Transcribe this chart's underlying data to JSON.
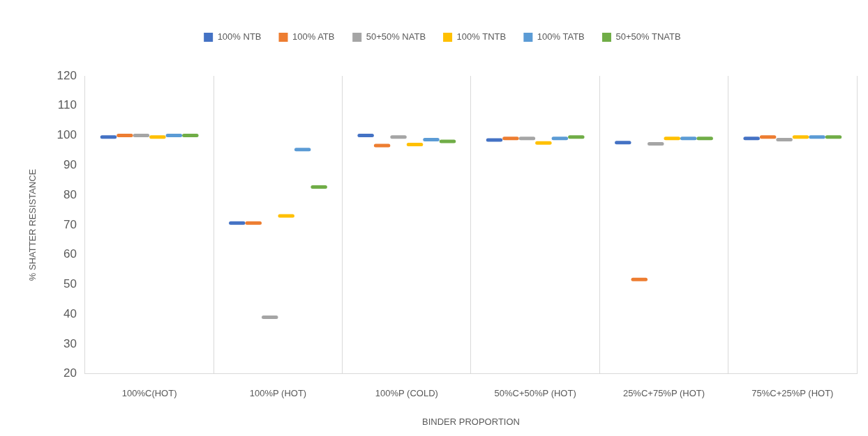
{
  "chart_data": {
    "type": "box",
    "categories": [
      "100%C(HOT)",
      "100%P (HOT)",
      "100%P (COLD)",
      "50%C+50%P (HOT)",
      "25%C+75%P (HOT)",
      "75%C+25%P (HOT)"
    ],
    "xlabel": "BINDER PROPORTION",
    "ylabel": "% SHATTER RESISTANCE",
    "ylim": [
      20,
      120
    ],
    "yticks": [
      20,
      30,
      40,
      50,
      60,
      70,
      80,
      90,
      100,
      110,
      120
    ],
    "grid": "x",
    "legend": "top",
    "series": [
      {
        "name": "100% NTB",
        "color": "#4472c4",
        "boxes": [
          {
            "low": 99.5,
            "q1": 99.5,
            "median": 99.5,
            "q3": 99.5,
            "high": 99.5
          },
          {
            "low": 70.6,
            "q1": 70.6,
            "median": 70.6,
            "q3": 70.6,
            "high": 70.6
          },
          {
            "low": 100,
            "q1": 100,
            "median": 100,
            "q3": 100,
            "high": 100
          },
          {
            "low": 98.5,
            "q1": 98.5,
            "median": 98.5,
            "q3": 98.5,
            "high": 98.5
          },
          {
            "low": 97.6,
            "q1": 97.6,
            "median": 97.6,
            "q3": 97.6,
            "high": 97.6
          },
          {
            "low": 99,
            "q1": 99,
            "median": 99,
            "q3": 99,
            "high": 99
          }
        ]
      },
      {
        "name": "100% ATB",
        "color": "#ed7d31",
        "boxes": [
          {
            "low": 100,
            "q1": 100,
            "median": 100,
            "q3": 100,
            "high": 100
          },
          {
            "low": 70.6,
            "q1": 70.6,
            "median": 70.6,
            "q3": 70.6,
            "high": 70.6
          },
          {
            "low": 96.6,
            "q1": 96.6,
            "median": 96.6,
            "q3": 96.6,
            "high": 96.6
          },
          {
            "low": 99,
            "q1": 99,
            "median": 99,
            "q3": 99,
            "high": 99
          },
          {
            "low": 51.7,
            "q1": 51.7,
            "median": 51.7,
            "q3": 51.7,
            "high": 51.7
          },
          {
            "low": 99.5,
            "q1": 99.5,
            "median": 99.5,
            "q3": 99.5,
            "high": 99.5
          }
        ]
      },
      {
        "name": "50+50% NATB",
        "color": "#a5a5a5",
        "boxes": [
          {
            "low": 100,
            "q1": 100,
            "median": 100,
            "q3": 100,
            "high": 100
          },
          {
            "low": 39,
            "q1": 39,
            "median": 39,
            "q3": 39,
            "high": 39
          },
          {
            "low": 99.5,
            "q1": 99.5,
            "median": 99.5,
            "q3": 99.5,
            "high": 99.5
          },
          {
            "low": 99,
            "q1": 99,
            "median": 99,
            "q3": 99,
            "high": 99
          },
          {
            "low": 97.2,
            "q1": 97.2,
            "median": 97.2,
            "q3": 97.2,
            "high": 97.2
          },
          {
            "low": 98.6,
            "q1": 98.6,
            "median": 98.6,
            "q3": 98.6,
            "high": 98.6
          }
        ]
      },
      {
        "name": "100% TNTB",
        "color": "#ffc000",
        "boxes": [
          {
            "low": 99.5,
            "q1": 99.5,
            "median": 99.5,
            "q3": 99.5,
            "high": 99.5
          },
          {
            "low": 73,
            "q1": 73,
            "median": 73,
            "q3": 73,
            "high": 73
          },
          {
            "low": 97,
            "q1": 97,
            "median": 97,
            "q3": 97,
            "high": 97
          },
          {
            "low": 97.5,
            "q1": 97.5,
            "median": 97.5,
            "q3": 97.5,
            "high": 97.5
          },
          {
            "low": 99,
            "q1": 99,
            "median": 99,
            "q3": 99,
            "high": 99
          },
          {
            "low": 99.5,
            "q1": 99.5,
            "median": 99.5,
            "q3": 99.5,
            "high": 99.5
          }
        ]
      },
      {
        "name": "100% TATB",
        "color": "#5b9bd5",
        "boxes": [
          {
            "low": 100,
            "q1": 100,
            "median": 100,
            "q3": 100,
            "high": 100
          },
          {
            "low": 95.3,
            "q1": 95.3,
            "median": 95.3,
            "q3": 95.3,
            "high": 95.3
          },
          {
            "low": 98.6,
            "q1": 98.6,
            "median": 98.6,
            "q3": 98.6,
            "high": 98.6
          },
          {
            "low": 99,
            "q1": 99,
            "median": 99,
            "q3": 99,
            "high": 99
          },
          {
            "low": 99,
            "q1": 99,
            "median": 99,
            "q3": 99,
            "high": 99
          },
          {
            "low": 99.5,
            "q1": 99.5,
            "median": 99.5,
            "q3": 99.5,
            "high": 99.5
          }
        ]
      },
      {
        "name": "50+50% TNATB",
        "color": "#70ad47",
        "boxes": [
          {
            "low": 100,
            "q1": 100,
            "median": 100,
            "q3": 100,
            "high": 100
          },
          {
            "low": 82.7,
            "q1": 82.7,
            "median": 82.7,
            "q3": 82.7,
            "high": 82.7
          },
          {
            "low": 98,
            "q1": 98,
            "median": 98,
            "q3": 98,
            "high": 98
          },
          {
            "low": 99.5,
            "q1": 99.5,
            "median": 99.5,
            "q3": 99.5,
            "high": 99.5
          },
          {
            "low": 99,
            "q1": 99,
            "median": 99,
            "q3": 99,
            "high": 99
          },
          {
            "low": 99.5,
            "q1": 99.5,
            "median": 99.5,
            "q3": 99.5,
            "high": 99.5
          }
        ]
      }
    ]
  }
}
